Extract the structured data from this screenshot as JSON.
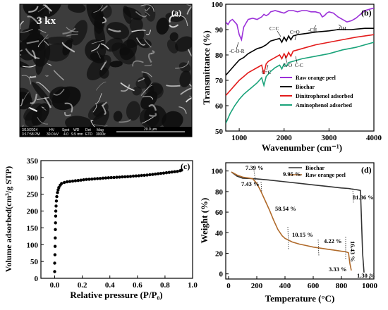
{
  "panel_labels": [
    "(a)",
    "(b)",
    "(c)",
    "(d)"
  ],
  "sem": {
    "magnification": "3 kx",
    "info_headers": [
      "HV",
      "Spot",
      "WD",
      "Det",
      "Mag"
    ],
    "date": "3/19/2024",
    "time": "3:17:58 PM",
    "info_values": [
      "30.0 kV",
      "4.0",
      "9.5 mm",
      "ETD",
      "3000x"
    ],
    "scale_bar": "20.0 µm"
  },
  "colors": {
    "raw_peel_ftir": "#9b30d9",
    "biochar": "#000000",
    "dinitrophenol": "#e31b1b",
    "aminophenol": "#1aa37a",
    "raw_peel_tga": "#b06a2a",
    "tga_biochar": "#333333"
  },
  "chart_data": [
    {
      "type": "line",
      "panel": "(b)",
      "xlabel": "Wavenumber (cm⁻¹)",
      "ylabel": "Transmittance (%)",
      "xlim": [
        700,
        4000
      ],
      "ylim": [
        50,
        100
      ],
      "xticks": [
        "1000",
        "2000",
        "3000",
        "4000"
      ],
      "yticks": [
        "50",
        "60",
        "70",
        "80",
        "90",
        "100"
      ],
      "legend_position": "bottom-right",
      "annotations": [
        "-C-O-R",
        "C=C",
        "C=O",
        "-CH",
        "-OH",
        "C=C",
        "C-O",
        "C-C"
      ],
      "series": [
        {
          "name": "Raw orange peel",
          "x": [
            700,
            750,
            800,
            850,
            900,
            950,
            1000,
            1050,
            1100,
            1200,
            1300,
            1400,
            1500,
            1550,
            1600,
            1650,
            1700,
            1800,
            1900,
            2000,
            2100,
            2200,
            2300,
            2400,
            2500,
            2600,
            2700,
            2800,
            2850,
            2900,
            2950,
            3000,
            3100,
            3200,
            3300,
            3400,
            3500,
            3600,
            3700,
            3800,
            3900,
            4000
          ],
          "y": [
            93,
            92,
            93.5,
            94,
            93,
            92,
            88,
            86,
            91,
            94,
            94.5,
            94,
            95,
            96,
            95.5,
            96,
            97,
            97.5,
            97,
            96.5,
            97.5,
            97.5,
            97,
            97.5,
            97.5,
            97,
            97,
            96.5,
            95,
            95.5,
            96.5,
            97,
            96.5,
            95,
            94,
            93,
            93.5,
            94.5,
            96,
            97.5,
            98,
            98.5
          ]
        },
        {
          "name": "Biochar",
          "x": [
            700,
            800,
            900,
            1000,
            1100,
            1200,
            1300,
            1400,
            1500,
            1600,
            1700,
            1800,
            1900,
            1950,
            2000,
            2050,
            2100,
            2150,
            2200,
            2300,
            2500,
            2700,
            3000,
            3200,
            3500,
            3800,
            4000
          ],
          "y": [
            72,
            74,
            76,
            78,
            79,
            80.5,
            81.5,
            82.5,
            83,
            84,
            85.5,
            86,
            86.5,
            85,
            87,
            85.5,
            87.5,
            86,
            87.5,
            88,
            88.5,
            89,
            89.5,
            90,
            90,
            90.5,
            90.5
          ]
        },
        {
          "name": "Dinitrophenol adsorbed",
          "x": [
            700,
            800,
            900,
            1000,
            1100,
            1200,
            1300,
            1400,
            1500,
            1550,
            1600,
            1650,
            1700,
            1800,
            1900,
            1950,
            2000,
            2050,
            2100,
            2150,
            2200,
            2300,
            2500,
            2700,
            3000,
            3300,
            3600,
            4000
          ],
          "y": [
            64,
            66,
            68,
            70,
            71.5,
            73,
            74,
            75,
            76,
            72.5,
            76.5,
            77.5,
            78,
            79,
            80,
            78.5,
            80.5,
            79,
            81,
            79.5,
            81.5,
            82,
            83,
            84,
            85,
            86,
            87,
            88
          ]
        },
        {
          "name": "Aminophenol adsorbed",
          "x": [
            700,
            800,
            900,
            1000,
            1100,
            1200,
            1300,
            1400,
            1500,
            1550,
            1600,
            1650,
            1700,
            1800,
            1900,
            1950,
            2000,
            2050,
            2100,
            2200,
            2400,
            2700,
            3000,
            3300,
            3600,
            4000
          ],
          "y": [
            53,
            57,
            60,
            62.5,
            64.5,
            66,
            67.5,
            69,
            71,
            68,
            71.5,
            72.5,
            73.5,
            75,
            76,
            74.5,
            76.5,
            75.5,
            77,
            77.5,
            78.5,
            79.5,
            80.5,
            82,
            83,
            85
          ]
        }
      ]
    },
    {
      "type": "scatter",
      "panel": "(c)",
      "xlabel": "Relative pressure (P/P₀)",
      "ylabel": "Volume adsorbed(cm³/g STP)",
      "xlim": [
        -0.1,
        1.0
      ],
      "ylim": [
        0,
        350
      ],
      "xticks": [
        "0.0",
        "0.2",
        "0.4",
        "0.6",
        "0.8",
        "1.0"
      ],
      "yticks": [
        "0",
        "50",
        "100",
        "150",
        "200",
        "250",
        "300",
        "350"
      ],
      "series": [
        {
          "x": [
            0.0,
            0.0,
            0.002,
            0.003,
            0.004,
            0.005,
            0.006,
            0.007,
            0.008,
            0.01,
            0.012,
            0.015,
            0.02,
            0.025,
            0.03,
            0.04,
            0.05,
            0.07,
            0.09,
            0.11,
            0.13,
            0.15,
            0.17,
            0.19,
            0.21,
            0.23,
            0.25,
            0.27,
            0.29,
            0.31,
            0.33,
            0.35,
            0.37,
            0.39,
            0.41,
            0.43,
            0.45,
            0.47,
            0.49,
            0.51,
            0.53,
            0.55,
            0.57,
            0.59,
            0.61,
            0.63,
            0.65,
            0.67,
            0.69,
            0.71,
            0.73,
            0.75,
            0.77,
            0.79,
            0.81,
            0.83,
            0.85,
            0.87,
            0.89,
            0.91,
            0.92
          ],
          "y": [
            20,
            45,
            70,
            95,
            120,
            145,
            165,
            185,
            200,
            215,
            230,
            243,
            255,
            263,
            270,
            277,
            282,
            285,
            287,
            288,
            289,
            290,
            291,
            292,
            293,
            294,
            294.5,
            295,
            296,
            296.5,
            297,
            298,
            298.5,
            299,
            299.5,
            300,
            300.5,
            301,
            301.5,
            302,
            302.5,
            303,
            304,
            304.5,
            305,
            306,
            306.5,
            307,
            308,
            309,
            310,
            311,
            312,
            313,
            314,
            315,
            316,
            317,
            318,
            320,
            322
          ]
        }
      ]
    },
    {
      "type": "line",
      "panel": "(d)",
      "xlabel": "Temperature (°C)",
      "ylabel": "Weight (%)",
      "xlim": [
        -20,
        1030
      ],
      "ylim": [
        -5,
        108
      ],
      "xticks": [
        "0",
        "200",
        "400",
        "600",
        "800",
        "1000"
      ],
      "yticks": [
        "0",
        "20",
        "40",
        "60",
        "80",
        "100"
      ],
      "legend_position": "top-right",
      "annotations": [
        "7.39 %",
        "7.43 %",
        "9.95 %",
        "81.36 %",
        "58.54 %",
        "10.15 %",
        "4.22 %",
        "16.43 %",
        "3.33 %",
        "1.30 %"
      ],
      "series": [
        {
          "name": "Biochar",
          "x": [
            20,
            60,
            100,
            150,
            200,
            300,
            400,
            500,
            600,
            700,
            800,
            850,
            870,
            900,
            920,
            935,
            950,
            960
          ],
          "y": [
            99,
            95,
            93,
            92.7,
            92.3,
            91,
            89.5,
            88,
            86.5,
            85,
            83.5,
            83,
            82.5,
            82,
            81.5,
            81,
            20,
            1.3
          ]
        },
        {
          "name": "Raw orange peel",
          "x": [
            20,
            60,
            100,
            150,
            170,
            200,
            230,
            260,
            290,
            320,
            350,
            380,
            400,
            450,
            500,
            550,
            600,
            650,
            700,
            750,
            800,
            830,
            850,
            860,
            870
          ],
          "y": [
            99,
            96,
            94,
            93,
            92.5,
            88,
            80,
            71,
            62,
            52,
            43,
            37,
            34.5,
            31,
            29,
            27.5,
            26,
            25,
            24,
            23,
            22,
            21.5,
            20.5,
            10,
            3.3
          ]
        }
      ]
    }
  ]
}
